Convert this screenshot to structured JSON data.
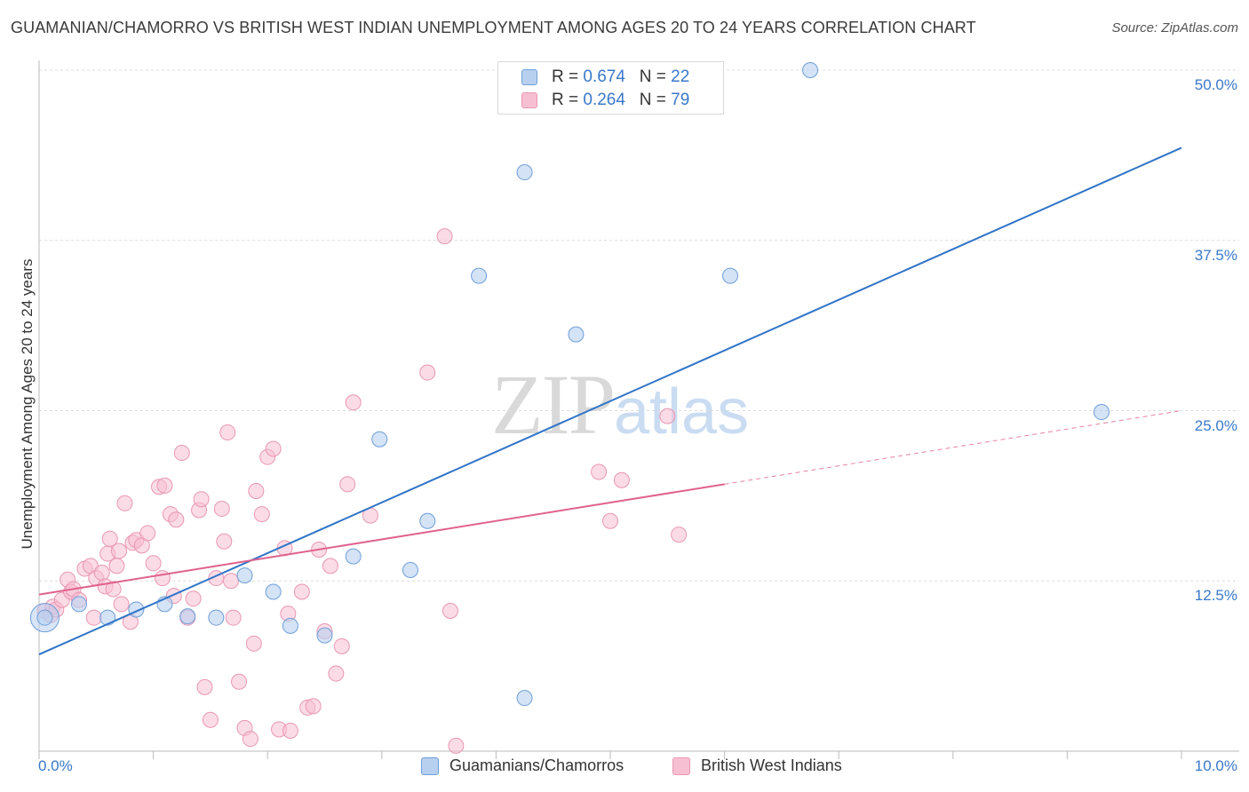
{
  "header": {
    "title": "GUAMANIAN/CHAMORRO VS BRITISH WEST INDIAN UNEMPLOYMENT AMONG AGES 20 TO 24 YEARS CORRELATION CHART",
    "source": "Source: ZipAtlas.com"
  },
  "watermark": {
    "zip": "ZIP",
    "atlas": "atlas"
  },
  "legend": {
    "blue": {
      "r_label": "R = ",
      "r_value": "0.674",
      "n_label": "N = ",
      "n_value": "22"
    },
    "pink": {
      "r_label": "R = ",
      "r_value": "0.264",
      "n_label": "N = ",
      "n_value": "79"
    }
  },
  "colors": {
    "blue_fill": "#b8d0f0",
    "blue_stroke": "#6f9fd8",
    "blue_line": "#2f74c8",
    "pink_fill": "#f7c0d2",
    "pink_stroke": "#e996b3",
    "pink_line": "#e0628e",
    "grid": "#dcdcdc",
    "tick_label": "#3a78c9"
  },
  "chart_data": {
    "type": "scatter",
    "title": "GUAMANIAN/CHAMORRO VS BRITISH WEST INDIAN UNEMPLOYMENT AMONG AGES 20 TO 24 YEARS CORRELATION CHART",
    "xlabel": "",
    "ylabel": "Unemployment Among Ages 20 to 24 years",
    "xlim": [
      0,
      10
    ],
    "ylim": [
      0,
      50
    ],
    "x_tick_labels": [
      {
        "v": 0,
        "label": "0.0%"
      },
      {
        "v": 10,
        "label": "10.0%"
      }
    ],
    "y_tick_labels": [
      {
        "v": 12.5,
        "label": "12.5%"
      },
      {
        "v": 25,
        "label": "25.0%"
      },
      {
        "v": 37.5,
        "label": "37.5%"
      },
      {
        "v": 50,
        "label": "50.0%"
      }
    ],
    "grid": true,
    "legend_position": "bottom",
    "series": [
      {
        "name": "Guamanians/Chamorros",
        "color": "#6f9fd8",
        "points": [
          [
            0.05,
            9.8
          ],
          [
            0.35,
            10.8
          ],
          [
            0.6,
            9.8
          ],
          [
            0.85,
            10.4
          ],
          [
            1.1,
            10.8
          ],
          [
            1.3,
            9.9
          ],
          [
            1.55,
            9.8
          ],
          [
            1.8,
            12.9
          ],
          [
            2.05,
            11.7
          ],
          [
            2.2,
            9.2
          ],
          [
            2.5,
            8.5
          ],
          [
            2.75,
            14.3
          ],
          [
            2.98,
            22.9
          ],
          [
            3.25,
            13.3
          ],
          [
            3.4,
            16.9
          ],
          [
            3.85,
            34.9
          ],
          [
            4.25,
            42.5
          ],
          [
            4.25,
            3.9
          ],
          [
            4.7,
            30.6
          ],
          [
            6.05,
            34.9
          ],
          [
            6.75,
            50.0
          ],
          [
            9.3,
            24.9
          ]
        ],
        "big_points": [
          [
            0.05,
            9.8
          ]
        ],
        "trend": {
          "x0": 0,
          "y0": 7.1,
          "x1": 10,
          "y1": 44.3
        }
      },
      {
        "name": "British West Indians",
        "color": "#e996b3",
        "points": [
          [
            0.05,
            10.3
          ],
          [
            0.1,
            10.0
          ],
          [
            0.12,
            10.6
          ],
          [
            0.15,
            10.4
          ],
          [
            0.2,
            11.1
          ],
          [
            0.25,
            12.6
          ],
          [
            0.28,
            11.7
          ],
          [
            0.3,
            11.9
          ],
          [
            0.35,
            11.1
          ],
          [
            0.4,
            13.4
          ],
          [
            0.45,
            13.6
          ],
          [
            0.48,
            9.8
          ],
          [
            0.5,
            12.7
          ],
          [
            0.55,
            13.1
          ],
          [
            0.58,
            12.1
          ],
          [
            0.6,
            14.5
          ],
          [
            0.62,
            15.6
          ],
          [
            0.65,
            11.9
          ],
          [
            0.68,
            13.6
          ],
          [
            0.7,
            14.7
          ],
          [
            0.72,
            10.8
          ],
          [
            0.75,
            18.2
          ],
          [
            0.8,
            9.5
          ],
          [
            0.82,
            15.3
          ],
          [
            0.85,
            15.5
          ],
          [
            0.9,
            15.1
          ],
          [
            0.95,
            16.0
          ],
          [
            1.0,
            13.8
          ],
          [
            1.05,
            19.4
          ],
          [
            1.08,
            12.7
          ],
          [
            1.1,
            19.5
          ],
          [
            1.15,
            17.4
          ],
          [
            1.18,
            11.4
          ],
          [
            1.2,
            17.0
          ],
          [
            1.25,
            21.9
          ],
          [
            1.3,
            9.8
          ],
          [
            1.35,
            11.2
          ],
          [
            1.4,
            17.7
          ],
          [
            1.42,
            18.5
          ],
          [
            1.45,
            4.7
          ],
          [
            1.5,
            2.3
          ],
          [
            1.55,
            12.7
          ],
          [
            1.6,
            17.8
          ],
          [
            1.62,
            15.4
          ],
          [
            1.65,
            23.4
          ],
          [
            1.68,
            12.5
          ],
          [
            1.7,
            9.8
          ],
          [
            1.75,
            5.1
          ],
          [
            1.8,
            1.7
          ],
          [
            1.85,
            0.9
          ],
          [
            1.88,
            7.9
          ],
          [
            1.9,
            19.1
          ],
          [
            1.95,
            17.4
          ],
          [
            2.0,
            21.6
          ],
          [
            2.05,
            22.2
          ],
          [
            2.1,
            1.6
          ],
          [
            2.15,
            14.9
          ],
          [
            2.18,
            10.1
          ],
          [
            2.2,
            1.5
          ],
          [
            2.3,
            11.7
          ],
          [
            2.35,
            3.2
          ],
          [
            2.4,
            3.3
          ],
          [
            2.45,
            14.8
          ],
          [
            2.5,
            8.8
          ],
          [
            2.55,
            13.6
          ],
          [
            2.6,
            5.7
          ],
          [
            2.65,
            7.7
          ],
          [
            2.7,
            19.6
          ],
          [
            2.75,
            25.6
          ],
          [
            2.9,
            17.3
          ],
          [
            3.4,
            27.8
          ],
          [
            3.55,
            37.8
          ],
          [
            3.6,
            10.3
          ],
          [
            3.65,
            0.4
          ],
          [
            4.9,
            20.5
          ],
          [
            5.0,
            16.9
          ],
          [
            5.1,
            19.9
          ],
          [
            5.5,
            24.6
          ],
          [
            5.6,
            15.9
          ]
        ],
        "trend": {
          "x0": 0,
          "y0": 11.5,
          "x1": 6.0,
          "y1": 19.6
        },
        "trend_extension": {
          "x0": 6.0,
          "y0": 19.6,
          "x1": 10,
          "y1": 25.0
        }
      }
    ]
  }
}
